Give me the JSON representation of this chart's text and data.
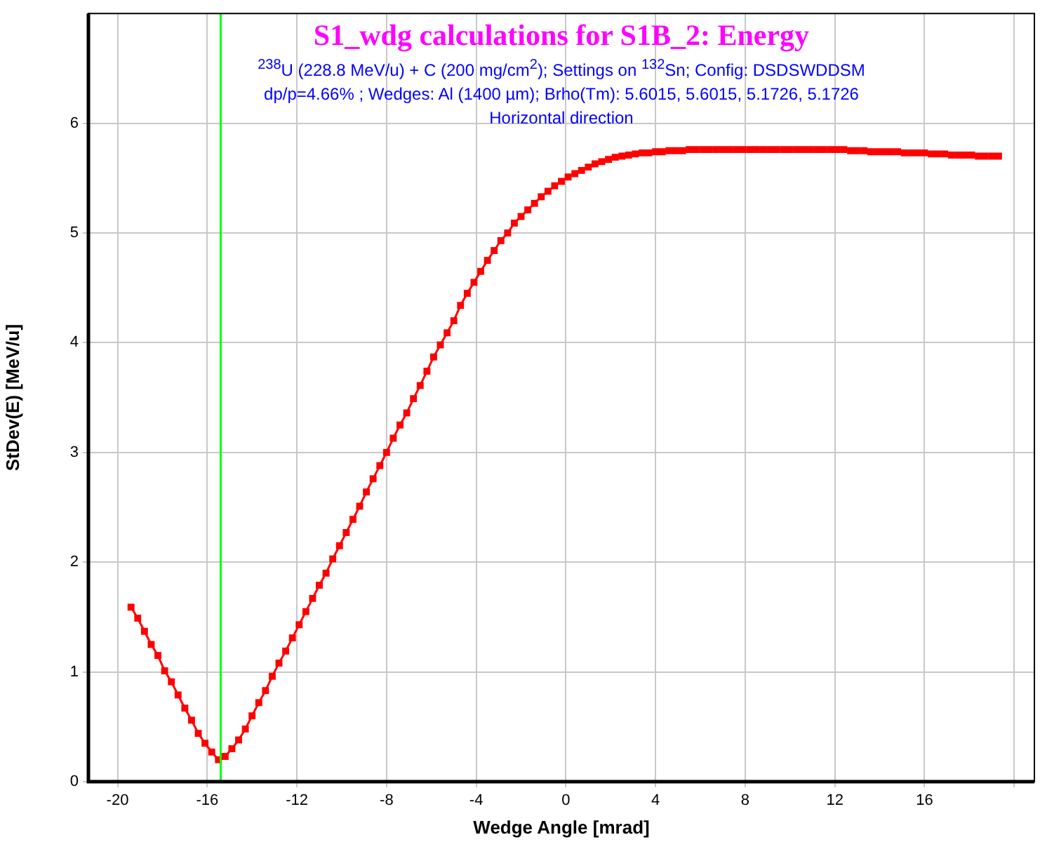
{
  "chart_data": {
    "type": "line",
    "title": "S1_wdg calculations for S1B_2:  Energy",
    "subtitle": "$^{238}$U (228.8 MeV/u) + C (200 mg/cm$^{2}$);  Settings on $^{132}$Sn;  Config: DSDSWDDSM",
    "annotations": [
      "dp/p=4.66% ; Wedges: Al (1400 µm); Brho(Tm): 5.6015, 5.6015, 5.1726, 5.1726",
      "Horizontal direction"
    ],
    "xlabel": "Wedge Angle [mrad]",
    "ylabel": "StDev(E) [MeV/u]",
    "xlim": [
      -21.3,
      20.9
    ],
    "xticks": [
      -20,
      -16,
      -12,
      -8,
      -4,
      0,
      4,
      8,
      12,
      16,
      {
        "value": 20,
        "label": null
      }
    ],
    "ylim": [
      0,
      7
    ],
    "yticks": [
      0,
      1,
      2,
      3,
      4,
      5,
      6
    ],
    "grid": true,
    "marker": "square",
    "line_style": "solid",
    "legend": false,
    "ref_lines": [
      {
        "axis": "x",
        "value": -15.4,
        "label": null,
        "color": "#00ff00"
      }
    ],
    "series": [
      {
        "color": "#ff0000",
        "x": [
          -19.4,
          -19.1,
          -18.8,
          -18.5,
          -18.2,
          -17.9,
          -17.6,
          -17.3,
          -17.0,
          -16.7,
          -16.4,
          -16.1,
          -15.8,
          -15.5,
          -15.2,
          -14.9,
          -14.6,
          -14.3,
          -14.0,
          -13.7,
          -13.4,
          -13.1,
          -12.8,
          -12.5,
          -12.2,
          -11.9,
          -11.6,
          -11.3,
          -11.0,
          -10.7,
          -10.4,
          -10.1,
          -9.8,
          -9.5,
          -9.2,
          -8.9,
          -8.6,
          -8.3,
          -8.0,
          -7.7,
          -7.4,
          -7.1,
          -6.8,
          -6.5,
          -6.2,
          -5.9,
          -5.6,
          -5.3,
          -5.0,
          -4.7,
          -4.4,
          -4.1,
          -3.8,
          -3.5,
          -3.2,
          -2.9,
          -2.6,
          -2.3,
          -2.0,
          -1.7,
          -1.4,
          -1.1,
          -0.8,
          -0.5,
          -0.2,
          0.1,
          0.4,
          0.7,
          1.0,
          1.3,
          1.6,
          1.9,
          2.2,
          2.5,
          2.8,
          3.1,
          3.4,
          3.7,
          4.0,
          4.3,
          4.6,
          4.9,
          5.2,
          5.5,
          5.8,
          6.1,
          6.4,
          6.7,
          7.0,
          7.3,
          7.6,
          7.9,
          8.2,
          8.5,
          8.8,
          9.1,
          9.4,
          9.7,
          10.0,
          10.3,
          10.6,
          10.9,
          11.2,
          11.5,
          11.8,
          12.1,
          12.4,
          12.7,
          13.0,
          13.3,
          13.6,
          13.9,
          14.2,
          14.5,
          14.8,
          15.1,
          15.4,
          15.7,
          16.0,
          16.3,
          16.6,
          16.9,
          17.2,
          17.5,
          17.8,
          18.1,
          18.4,
          18.7,
          19.0,
          19.3
        ],
        "values": [
          1.59,
          1.49,
          1.37,
          1.25,
          1.15,
          1.01,
          0.91,
          0.79,
          0.67,
          0.56,
          0.44,
          0.35,
          0.27,
          0.2,
          0.23,
          0.3,
          0.38,
          0.48,
          0.6,
          0.72,
          0.83,
          0.96,
          1.08,
          1.19,
          1.31,
          1.43,
          1.55,
          1.67,
          1.79,
          1.9,
          2.03,
          2.15,
          2.27,
          2.39,
          2.51,
          2.64,
          2.76,
          2.88,
          3.0,
          3.13,
          3.25,
          3.36,
          3.49,
          3.61,
          3.74,
          3.87,
          3.98,
          4.09,
          4.2,
          4.34,
          4.45,
          4.55,
          4.65,
          4.75,
          4.84,
          4.93,
          5.0,
          5.09,
          5.15,
          5.21,
          5.27,
          5.33,
          5.38,
          5.43,
          5.47,
          5.51,
          5.54,
          5.57,
          5.6,
          5.63,
          5.65,
          5.67,
          5.69,
          5.7,
          5.71,
          5.72,
          5.73,
          5.73,
          5.74,
          5.74,
          5.75,
          5.75,
          5.75,
          5.76,
          5.76,
          5.76,
          5.76,
          5.76,
          5.76,
          5.76,
          5.76,
          5.76,
          5.76,
          5.76,
          5.76,
          5.76,
          5.76,
          5.76,
          5.76,
          5.76,
          5.76,
          5.76,
          5.76,
          5.76,
          5.76,
          5.76,
          5.76,
          5.75,
          5.75,
          5.75,
          5.74,
          5.74,
          5.74,
          5.74,
          5.74,
          5.73,
          5.73,
          5.73,
          5.73,
          5.72,
          5.72,
          5.72,
          5.71,
          5.71,
          5.71,
          5.71,
          5.7,
          5.7,
          5.7,
          5.7
        ]
      }
    ]
  }
}
